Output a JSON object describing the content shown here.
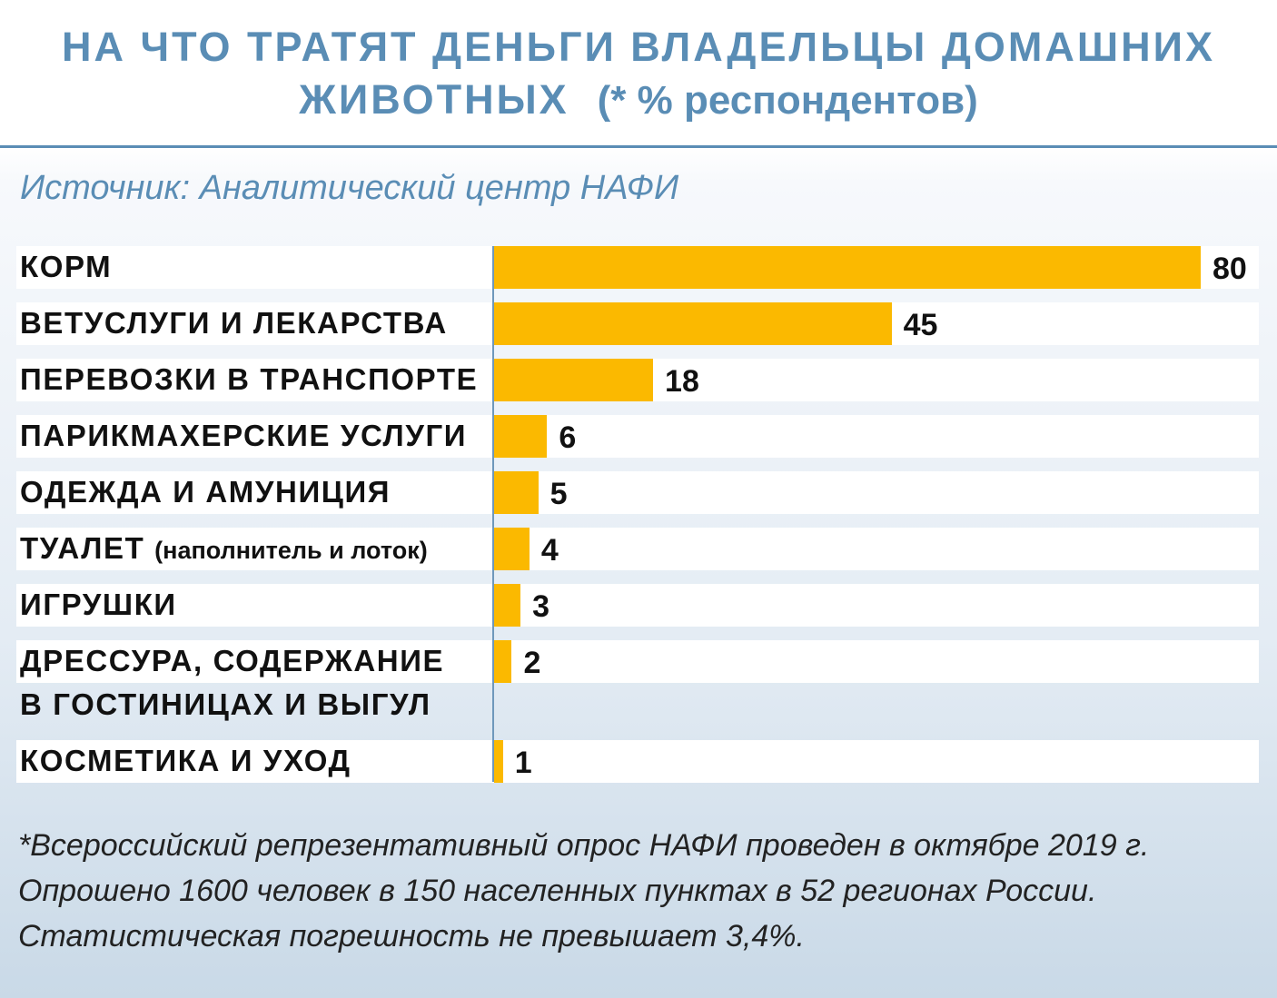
{
  "chart_data": {
    "type": "bar",
    "orientation": "horizontal",
    "title_line1": "НА ЧТО ТРАТЯТ ДЕНЬГИ ВЛАДЕЛЬЦЫ ДОМАШНИХ",
    "title_line2": "ЖИВОТНЫХ",
    "title_note": "(* % респондентов)",
    "source": "Источник: Аналитический центр НАФИ",
    "categories": [
      {
        "label": "КОРМ"
      },
      {
        "label": "ВЕТУСЛУГИ И ЛЕКАРСТВА"
      },
      {
        "label": "ПЕРЕВОЗКИ В ТРАНСПОРТЕ"
      },
      {
        "label": "ПАРИКМАХЕРСКИЕ УСЛУГИ"
      },
      {
        "label": "ОДЕЖДА И АМУНИЦИЯ"
      },
      {
        "label": "ТУАЛЕТ",
        "label_small": "(наполнитель и лоток)"
      },
      {
        "label": "ИГРУШКИ"
      },
      {
        "label": "ДРЕССУРА, СОДЕРЖАНИЕ",
        "label_line2": "В ГОСТИНИЦАХ И ВЫГУЛ"
      },
      {
        "label": "КОСМЕТИКА И УХОД"
      }
    ],
    "values": [
      80,
      45,
      18,
      6,
      5,
      4,
      3,
      2,
      1
    ],
    "xlim": [
      0,
      80
    ],
    "grid": false,
    "bar_color": "#fbb900",
    "title_color": "#5a8db5",
    "footnote": [
      "*Всероссийский репрезентативный опрос НАФИ проведен в октябре 2019 г.",
      "Опрошено 1600 человек в 150 населенных пунктах в 52 регионах России.",
      "Статистическая погрешность не превышает 3,4%."
    ]
  }
}
